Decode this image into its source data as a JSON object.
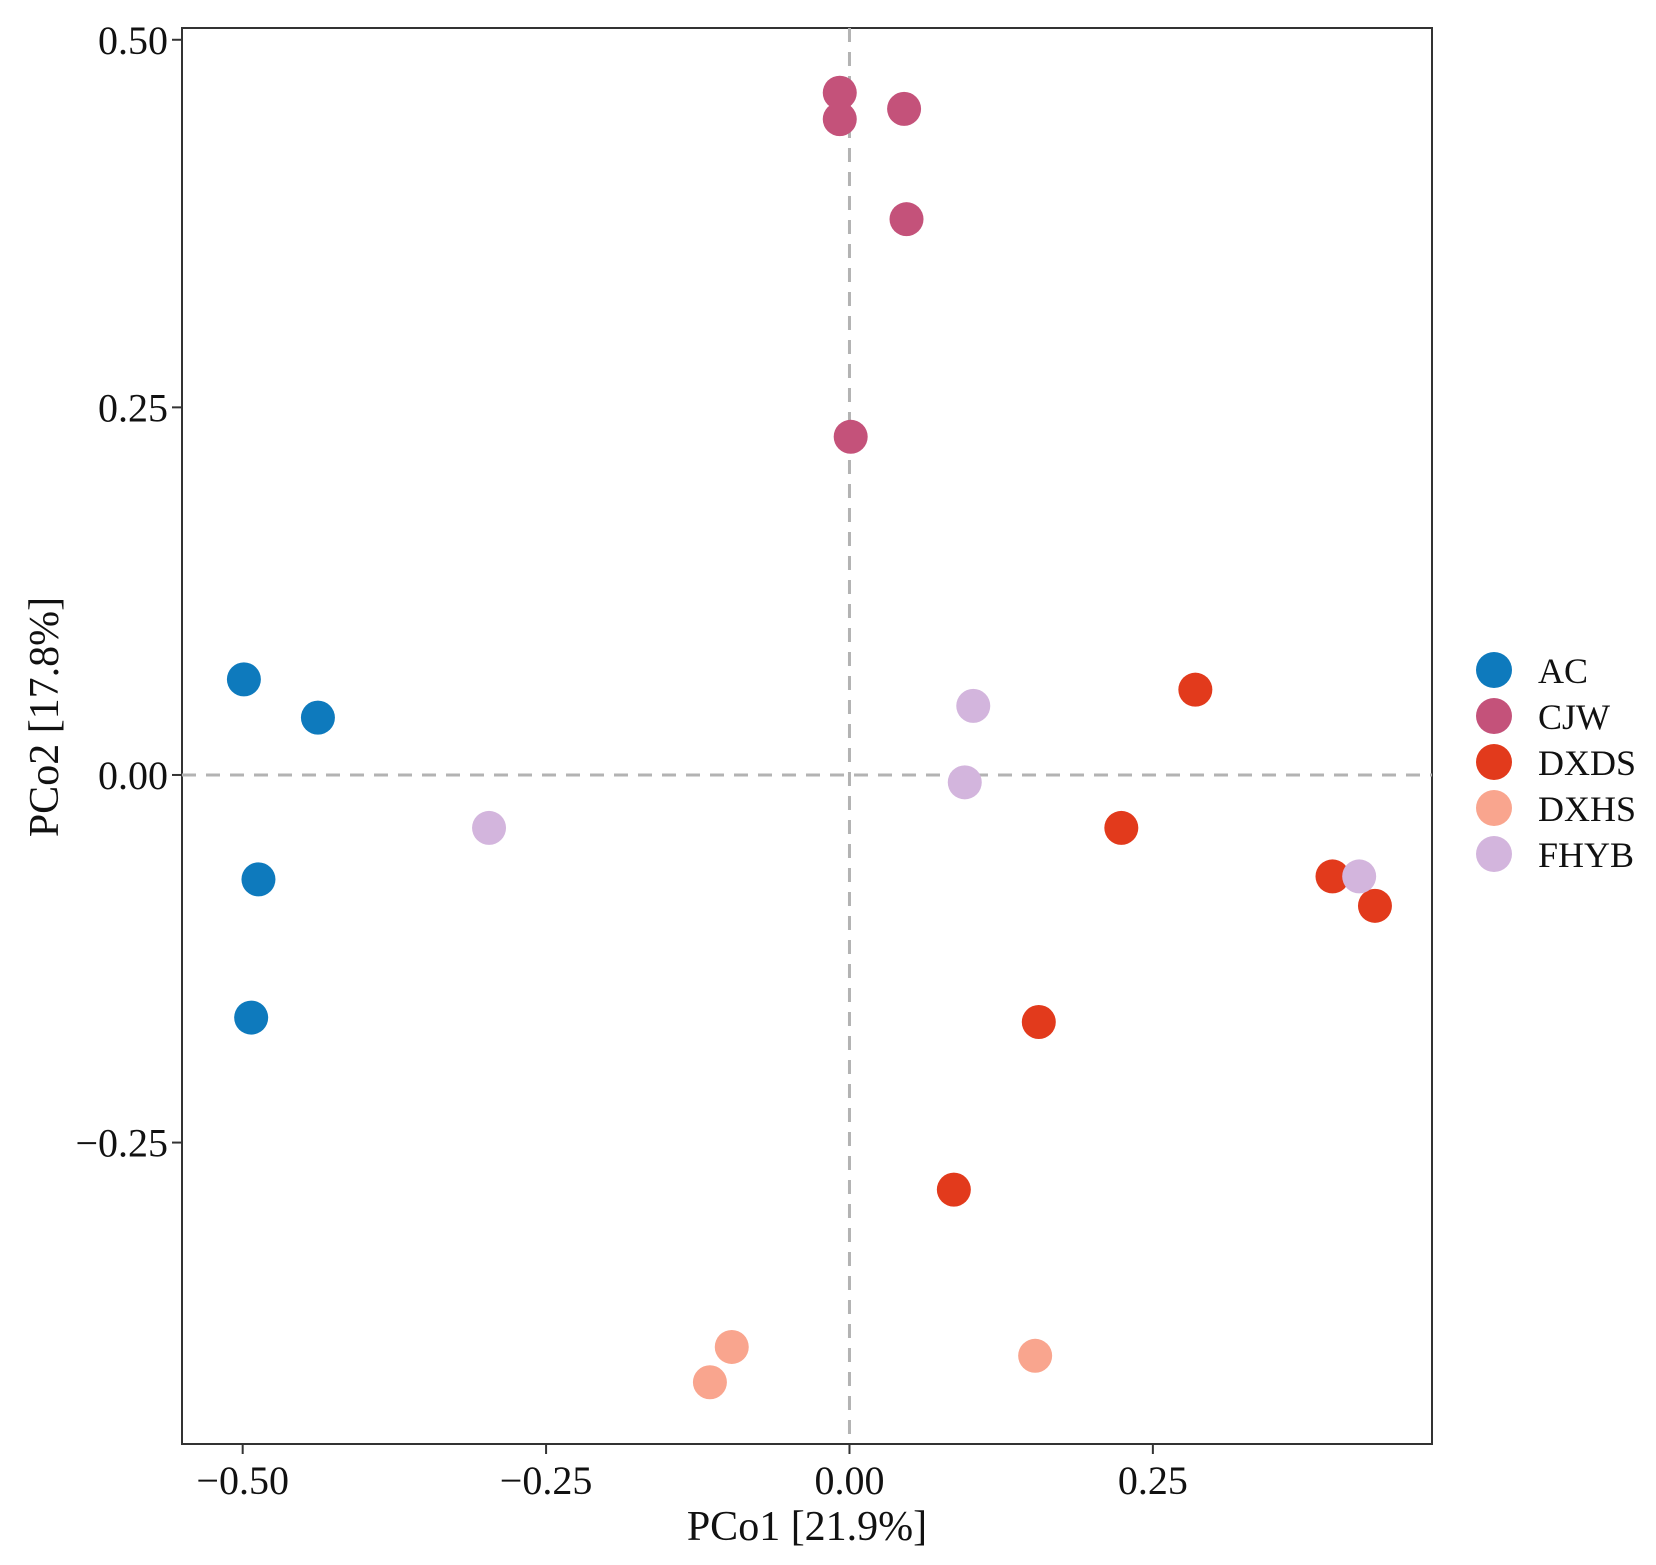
{
  "chart_data": {
    "type": "scatter",
    "xlabel": "PCo1 [21.9%]",
    "ylabel": "PCo2 [17.8%]",
    "xlim": [
      -0.55,
      0.48
    ],
    "ylim": [
      -0.455,
      0.508
    ],
    "xticks": [
      -0.5,
      -0.25,
      0.0,
      0.25
    ],
    "xtick_labels": [
      "−0.50",
      "−0.25",
      "0.00",
      "0.25"
    ],
    "yticks": [
      0.5,
      0.25,
      0.0,
      -0.25
    ],
    "ytick_labels": [
      "0.50",
      "0.25",
      "0.00",
      "−0.25"
    ],
    "grid": false,
    "reference_lines": {
      "x": 0.0,
      "y": 0.0,
      "style": "dashed"
    },
    "legend_position": "right",
    "series": [
      {
        "name": "AC",
        "color": "#0e7abd",
        "points": [
          {
            "x": -0.499,
            "y": 0.065
          },
          {
            "x": -0.438,
            "y": 0.039
          },
          {
            "x": -0.487,
            "y": -0.071
          },
          {
            "x": -0.493,
            "y": -0.165
          }
        ]
      },
      {
        "name": "CJW",
        "color": "#c4527a",
        "points": [
          {
            "x": -0.008,
            "y": 0.464
          },
          {
            "x": -0.008,
            "y": 0.446
          },
          {
            "x": 0.045,
            "y": 0.453
          },
          {
            "x": 0.047,
            "y": 0.378
          },
          {
            "x": 0.001,
            "y": 0.23
          }
        ]
      },
      {
        "name": "DXDS",
        "color": "#e23a1c",
        "points": [
          {
            "x": 0.285,
            "y": 0.058
          },
          {
            "x": 0.224,
            "y": -0.036
          },
          {
            "x": 0.398,
            "y": -0.069
          },
          {
            "x": 0.433,
            "y": -0.089
          },
          {
            "x": 0.156,
            "y": -0.168
          },
          {
            "x": 0.086,
            "y": -0.282
          }
        ]
      },
      {
        "name": "DXHS",
        "color": "#f9a58e",
        "points": [
          {
            "x": -0.097,
            "y": -0.389
          },
          {
            "x": -0.115,
            "y": -0.413
          },
          {
            "x": 0.153,
            "y": -0.395
          }
        ]
      },
      {
        "name": "FHYB",
        "color": "#d3b5dd",
        "points": [
          {
            "x": 0.102,
            "y": 0.047
          },
          {
            "x": 0.095,
            "y": -0.005
          },
          {
            "x": -0.297,
            "y": -0.036
          },
          {
            "x": 0.42,
            "y": -0.069
          }
        ]
      }
    ]
  }
}
